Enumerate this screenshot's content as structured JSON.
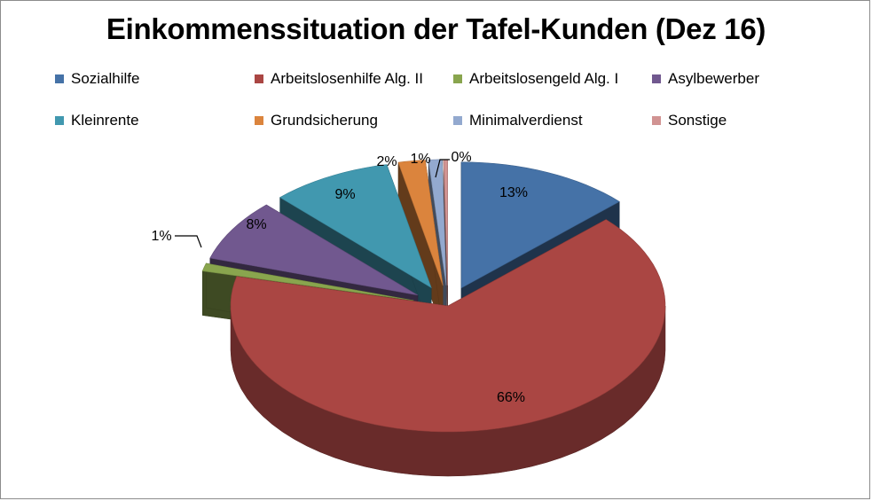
{
  "chart_data": {
    "type": "pie",
    "title": "Einkommenssituation der Tafel-Kunden (Dez 16)",
    "legend_position": "top",
    "series": [
      {
        "name": "Sozialhilfe",
        "value": 13,
        "label": "13%",
        "color": "#4572A7"
      },
      {
        "name": "Arbeitslosenhilfe Alg. II",
        "value": 66,
        "label": "66%",
        "color": "#AA4643"
      },
      {
        "name": "Arbeitslosengeld Alg. I",
        "value": 1,
        "label": "1%",
        "color": "#89A54E"
      },
      {
        "name": "Asylbewerber",
        "value": 8,
        "label": "8%",
        "color": "#71588F"
      },
      {
        "name": "Kleinrente",
        "value": 9,
        "label": "9%",
        "color": "#4198AF"
      },
      {
        "name": "Grundsicherung",
        "value": 2,
        "label": "2%",
        "color": "#DB843D"
      },
      {
        "name": "Minimalverdienst",
        "value": 1,
        "label": "1%",
        "color": "#93A9CF"
      },
      {
        "name": "Sonstige",
        "value": 0.3,
        "label": "0%",
        "color": "#D19392"
      }
    ]
  }
}
